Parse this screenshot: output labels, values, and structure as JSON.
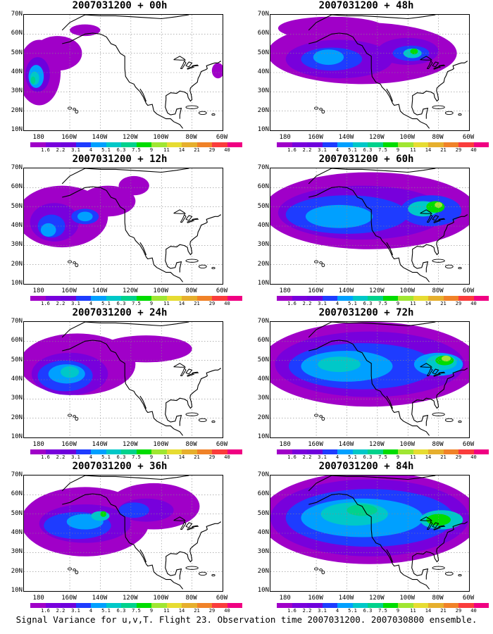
{
  "panels": [
    {
      "title": "2007031200 + 00h"
    },
    {
      "title": "2007031200 + 12h"
    },
    {
      "title": "2007031200 + 24h"
    },
    {
      "title": "2007031200 + 36h"
    },
    {
      "title": "2007031200 + 48h"
    },
    {
      "title": "2007031200 + 60h"
    },
    {
      "title": "2007031200 + 72h"
    },
    {
      "title": "2007031200 + 84h"
    }
  ],
  "lat_labels": [
    "70N",
    "60N",
    "50N",
    "40N",
    "30N",
    "20N",
    "10N"
  ],
  "lon_labels": [
    "180",
    "160W",
    "140W",
    "120W",
    "100W",
    "80W",
    "60W"
  ],
  "colorbar": {
    "labels": [
      "1.6",
      "2.2",
      "3.1",
      "4",
      "5.1",
      "6.3",
      "7.5",
      "9",
      "11",
      "14",
      "21",
      "29",
      "40"
    ],
    "colors": [
      "#a000c8",
      "#7800dc",
      "#6e00dc",
      "#1e3cff",
      "#00a0ff",
      "#00c8c8",
      "#00d28c",
      "#00dc00",
      "#a0e632",
      "#e6dc32",
      "#e6af2d",
      "#f08228",
      "#fa3c3c",
      "#f00082"
    ]
  },
  "caption": "Signal Variance for u,v,T. Flight 23. Observation time 2007031200. 2007030800 ensemble."
}
